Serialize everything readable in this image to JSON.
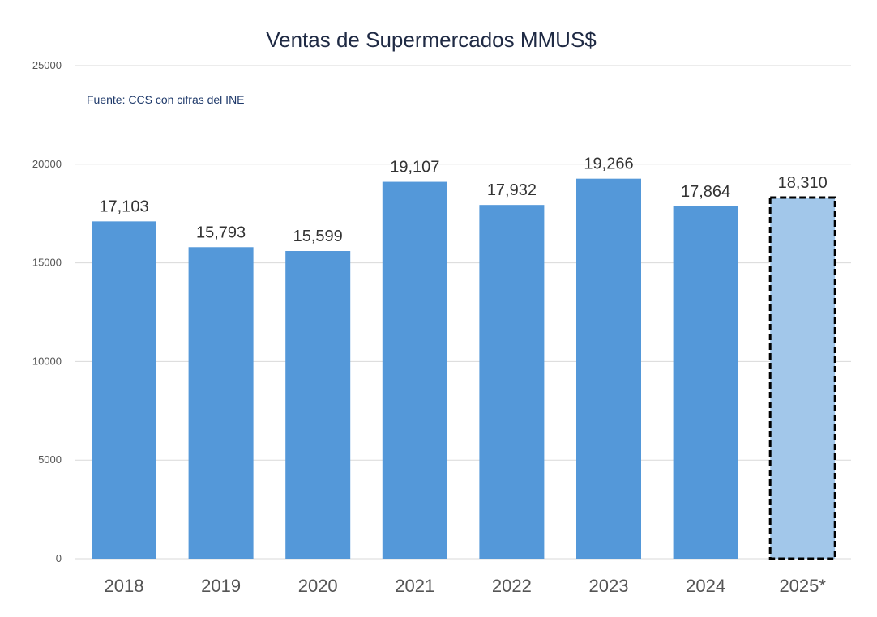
{
  "chart_data": {
    "type": "bar",
    "title": "Ventas de Supermercados MMUS$",
    "annotation": "Fuente: CCS con cifras del INE",
    "categories": [
      "2018",
      "2019",
      "2020",
      "2021",
      "2022",
      "2023",
      "2024",
      "2025*"
    ],
    "values": [
      17103,
      15793,
      15599,
      19107,
      17932,
      19266,
      17864,
      18310
    ],
    "data_labels": [
      "17,103",
      "15,793",
      "15,599",
      "19,107",
      "17,932",
      "19,266",
      "17,864",
      "18,310"
    ],
    "ylim": [
      0,
      25000
    ],
    "yticks": [
      0,
      5000,
      10000,
      15000,
      20000,
      25000
    ],
    "ytick_labels": [
      "0",
      "5000",
      "10000",
      "15000",
      "20000",
      "25000"
    ],
    "grid": true,
    "legend": "none",
    "colors": {
      "bar": "#5498d9",
      "projected_bar": "#a2c7ea",
      "projected_outline": "#000000"
    },
    "projected_category": "2025*"
  }
}
